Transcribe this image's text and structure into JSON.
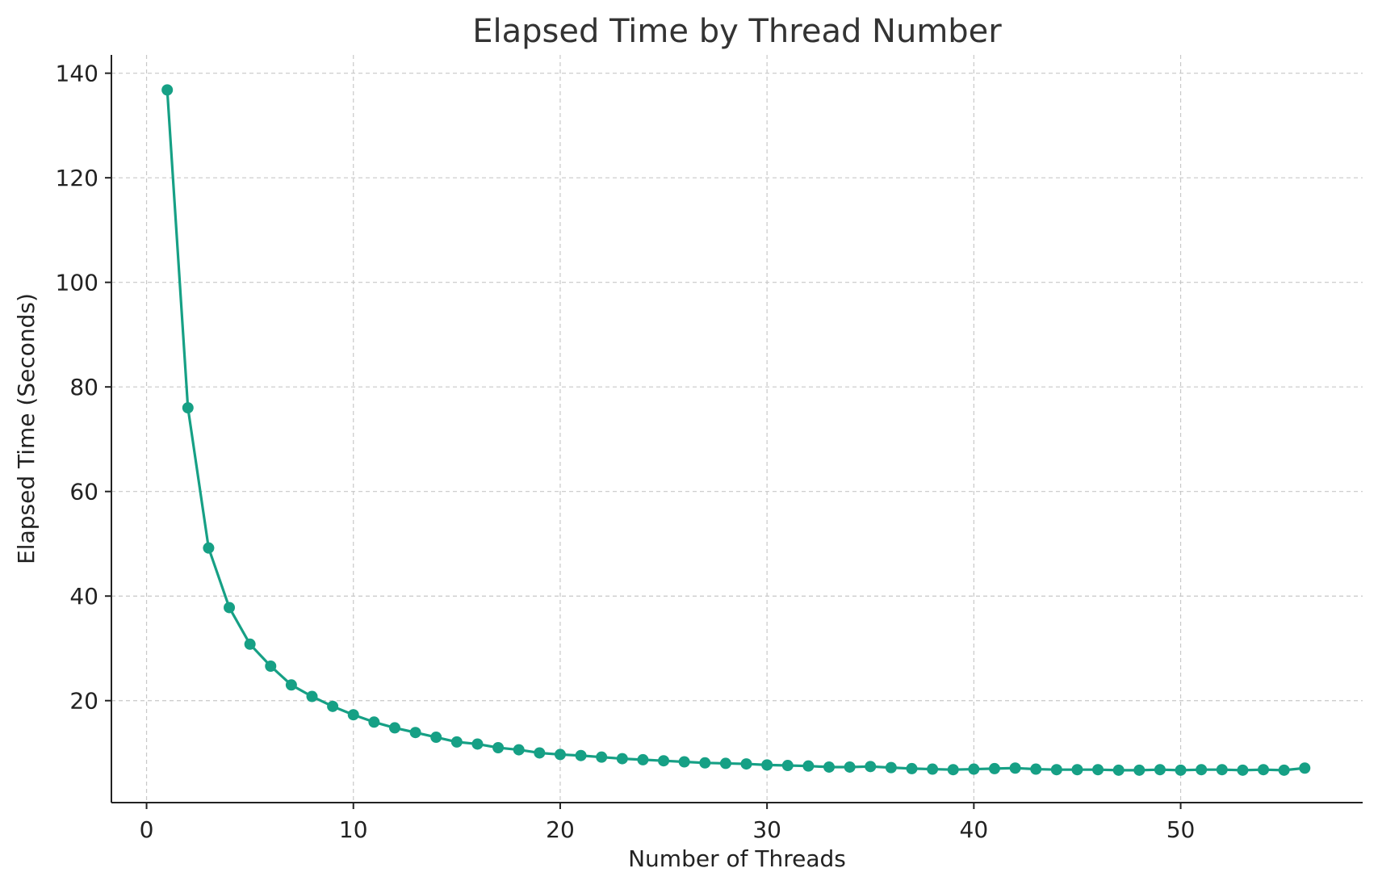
{
  "chart_data": {
    "type": "line",
    "title": "Elapsed Time by Thread Number",
    "xlabel": "Number of Threads",
    "ylabel": "Elapsed Time (Seconds)",
    "xlim": [
      -1.7,
      58.8
    ],
    "ylim": [
      0.5,
      143.5
    ],
    "xticks": [
      0,
      10,
      20,
      30,
      40,
      50
    ],
    "yticks": [
      20,
      40,
      60,
      80,
      100,
      120,
      140
    ],
    "grid": true,
    "line_color": "#16a085",
    "series": [
      {
        "x": [
          1,
          2,
          3,
          4,
          5,
          6,
          7,
          8,
          9,
          10,
          11,
          12,
          13,
          14,
          15,
          16,
          17,
          18,
          19,
          20,
          21,
          22,
          23,
          24,
          25,
          26,
          27,
          28,
          29,
          30,
          31,
          32,
          33,
          34,
          35,
          36,
          37,
          38,
          39,
          40,
          41,
          42,
          43,
          44,
          45,
          46,
          47,
          48,
          49,
          50,
          51,
          52,
          53,
          54,
          55,
          56
        ],
        "values": [
          136.8,
          76.0,
          49.2,
          37.8,
          30.8,
          26.6,
          23.0,
          20.8,
          18.9,
          17.3,
          15.9,
          14.8,
          13.9,
          13.0,
          12.1,
          11.7,
          11.0,
          10.6,
          10.0,
          9.7,
          9.5,
          9.2,
          8.9,
          8.7,
          8.5,
          8.3,
          8.1,
          8.0,
          7.9,
          7.7,
          7.6,
          7.5,
          7.3,
          7.3,
          7.4,
          7.2,
          7.0,
          6.9,
          6.8,
          6.9,
          7.0,
          7.1,
          6.9,
          6.8,
          6.8,
          6.8,
          6.7,
          6.7,
          6.8,
          6.7,
          6.8,
          6.8,
          6.7,
          6.8,
          6.7,
          7.1
        ]
      }
    ]
  }
}
